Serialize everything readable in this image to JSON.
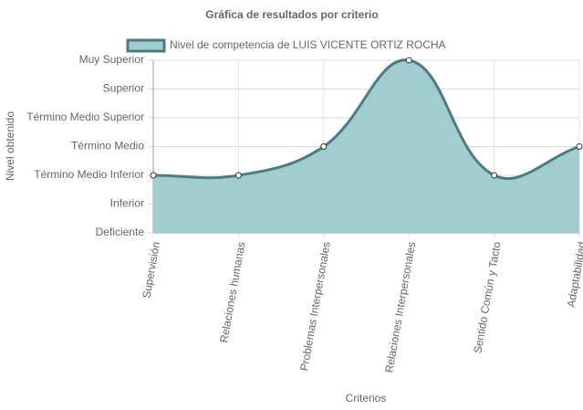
{
  "chart_data": {
    "type": "area",
    "title": "Gráfica de resultados por criterio",
    "x_label": "Criterios",
    "y_label": "Nivel obtenido",
    "categories": [
      "Supervisión",
      "Relaciones humanas",
      "Problemas Interpersonales",
      "Relaciones Interpersonales",
      "Sentido Común y Tacto",
      "Adaptabilidad"
    ],
    "series": [
      {
        "name": "Nivel de competencia de LUIS VICENTE ORTIZ ROCHA",
        "color": "#4e7b80",
        "fill": "#a0cdcf",
        "values": [
          2,
          2,
          3,
          6,
          2,
          3
        ]
      }
    ],
    "ylim": [
      0,
      6
    ],
    "yticks": [
      {
        "value": 0,
        "label": "Deficiente"
      },
      {
        "value": 1,
        "label": "Inferior"
      },
      {
        "value": 2,
        "label": "Término Medio Inferior"
      },
      {
        "value": 3,
        "label": "Término Medio"
      },
      {
        "value": 4,
        "label": "Término Medio Superior"
      },
      {
        "value": 5,
        "label": "Superior"
      },
      {
        "value": 6,
        "label": "Muy Superior"
      }
    ],
    "grid": true
  }
}
